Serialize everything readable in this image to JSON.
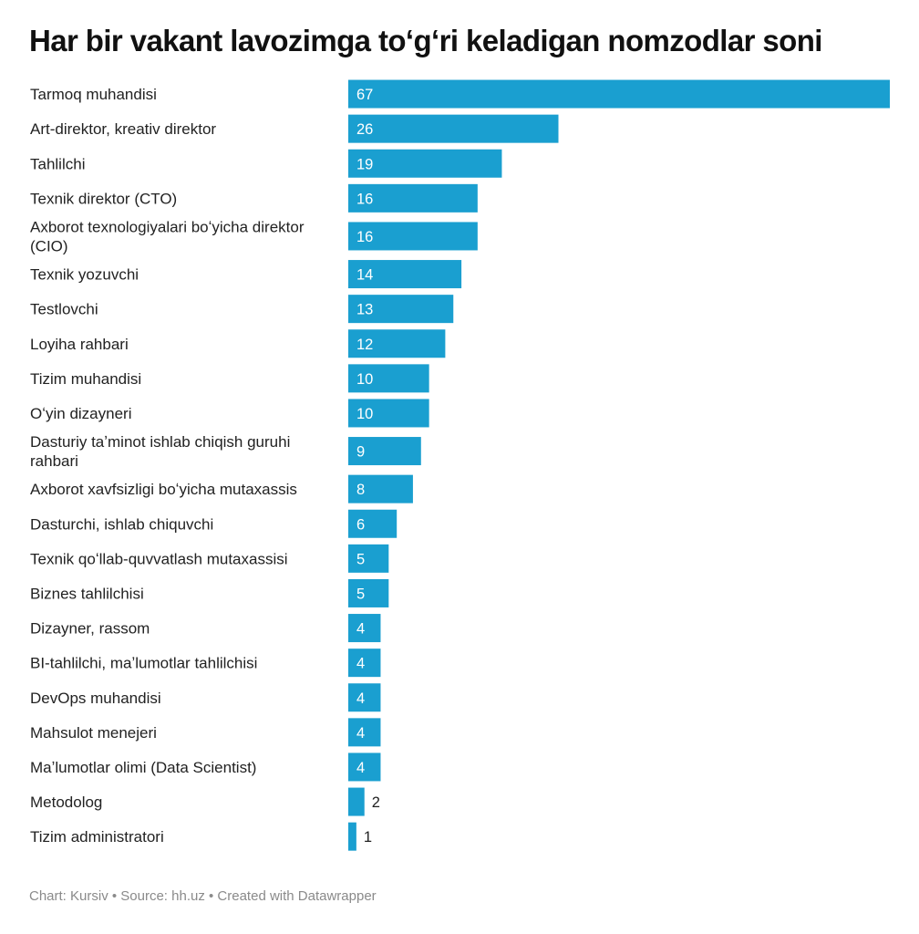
{
  "chart_data": {
    "type": "bar",
    "orientation": "horizontal",
    "title": "Har bir vakant lavozimga toʻgʻri keladigan nomzodlar soni",
    "categories": [
      "Tarmoq muhandisi",
      "Art-direktor, kreativ direktor",
      "Tahlilchi",
      "Texnik direktor (CTO)",
      "Axborot texnologiyalari boʻyicha direktor (CIO)",
      "Texnik yozuvchi",
      "Testlovchi",
      "Loyiha rahbari",
      "Tizim muhandisi",
      "Oʻyin dizayneri",
      "Dasturiy taʼminot ishlab chiqish guruhi rahbari",
      "Axborot xavfsizligi boʻyicha mutaxassis",
      "Dasturchi, ishlab chiquvchi",
      "Texnik qoʻllab-quvvatlash mutaxassisi",
      "Biznes tahlilchisi",
      "Dizayner, rassom",
      "BI-tahlilchi, maʼlumotlar tahlilchisi",
      "DevOps muhandisi",
      "Mahsulot menejeri",
      "Maʼlumotlar olimi (Data Scientist)",
      "Metodolog",
      "Tizim administratori"
    ],
    "label_lines": [
      [
        "Tarmoq muhandisi"
      ],
      [
        "Art-direktor, kreativ direktor"
      ],
      [
        "Tahlilchi"
      ],
      [
        "Texnik direktor (CTO)"
      ],
      [
        "Axborot texnologiyalari boʻyicha direktor",
        "(CIO)"
      ],
      [
        "Texnik yozuvchi"
      ],
      [
        "Testlovchi"
      ],
      [
        "Loyiha rahbari"
      ],
      [
        "Tizim muhandisi"
      ],
      [
        "Oʻyin dizayneri"
      ],
      [
        "Dasturiy taʼminot ishlab chiqish guruhi",
        "rahbari"
      ],
      [
        "Axborot xavfsizligi boʻyicha mutaxassis"
      ],
      [
        "Dasturchi, ishlab chiquvchi"
      ],
      [
        "Texnik qoʻllab-quvvatlash mutaxassisi"
      ],
      [
        "Biznes tahlilchisi"
      ],
      [
        "Dizayner, rassom"
      ],
      [
        "BI-tahlilchi, maʼlumotlar tahlilchisi"
      ],
      [
        "DevOps muhandisi"
      ],
      [
        "Mahsulot menejeri"
      ],
      [
        "Maʼlumotlar olimi (Data Scientist)"
      ],
      [
        "Metodolog"
      ],
      [
        "Tizim administratori"
      ]
    ],
    "values": [
      67,
      26,
      19,
      16,
      16,
      14,
      13,
      12,
      10,
      10,
      9,
      8,
      6,
      5,
      5,
      4,
      4,
      4,
      4,
      4,
      2,
      1
    ],
    "xlim": [
      0,
      67
    ],
    "bar_color": "#1a9fd0",
    "grid": false,
    "legend": "none"
  },
  "footer": "Chart: Kursiv • Source: hh.uz • Created with Datawrapper"
}
